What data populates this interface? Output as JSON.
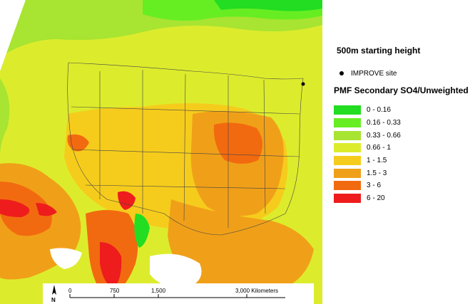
{
  "header": {
    "subtitle": "500m starting height"
  },
  "site_legend": {
    "label": "IMPROVE site"
  },
  "legend": {
    "title": "PMF Secondary SO4/Unweighted",
    "items": [
      {
        "label": "0 - 0.16",
        "color": "#22dd22"
      },
      {
        "label": "0.16 - 0.33",
        "color": "#66ee22"
      },
      {
        "label": "0.33 - 0.66",
        "color": "#a8e432"
      },
      {
        "label": "0.66 - 1",
        "color": "#dcec2c"
      },
      {
        "label": "1 - 1.5",
        "color": "#f6cc1c"
      },
      {
        "label": "1.5 - 3",
        "color": "#f0a018"
      },
      {
        "label": "3 - 6",
        "color": "#f26a10"
      },
      {
        "label": "6 - 20",
        "color": "#ee1c1c"
      }
    ]
  },
  "scalebar": {
    "north": "N",
    "ticks": [
      "0",
      "750",
      "1,500",
      "3,000 Kilometers"
    ]
  }
}
